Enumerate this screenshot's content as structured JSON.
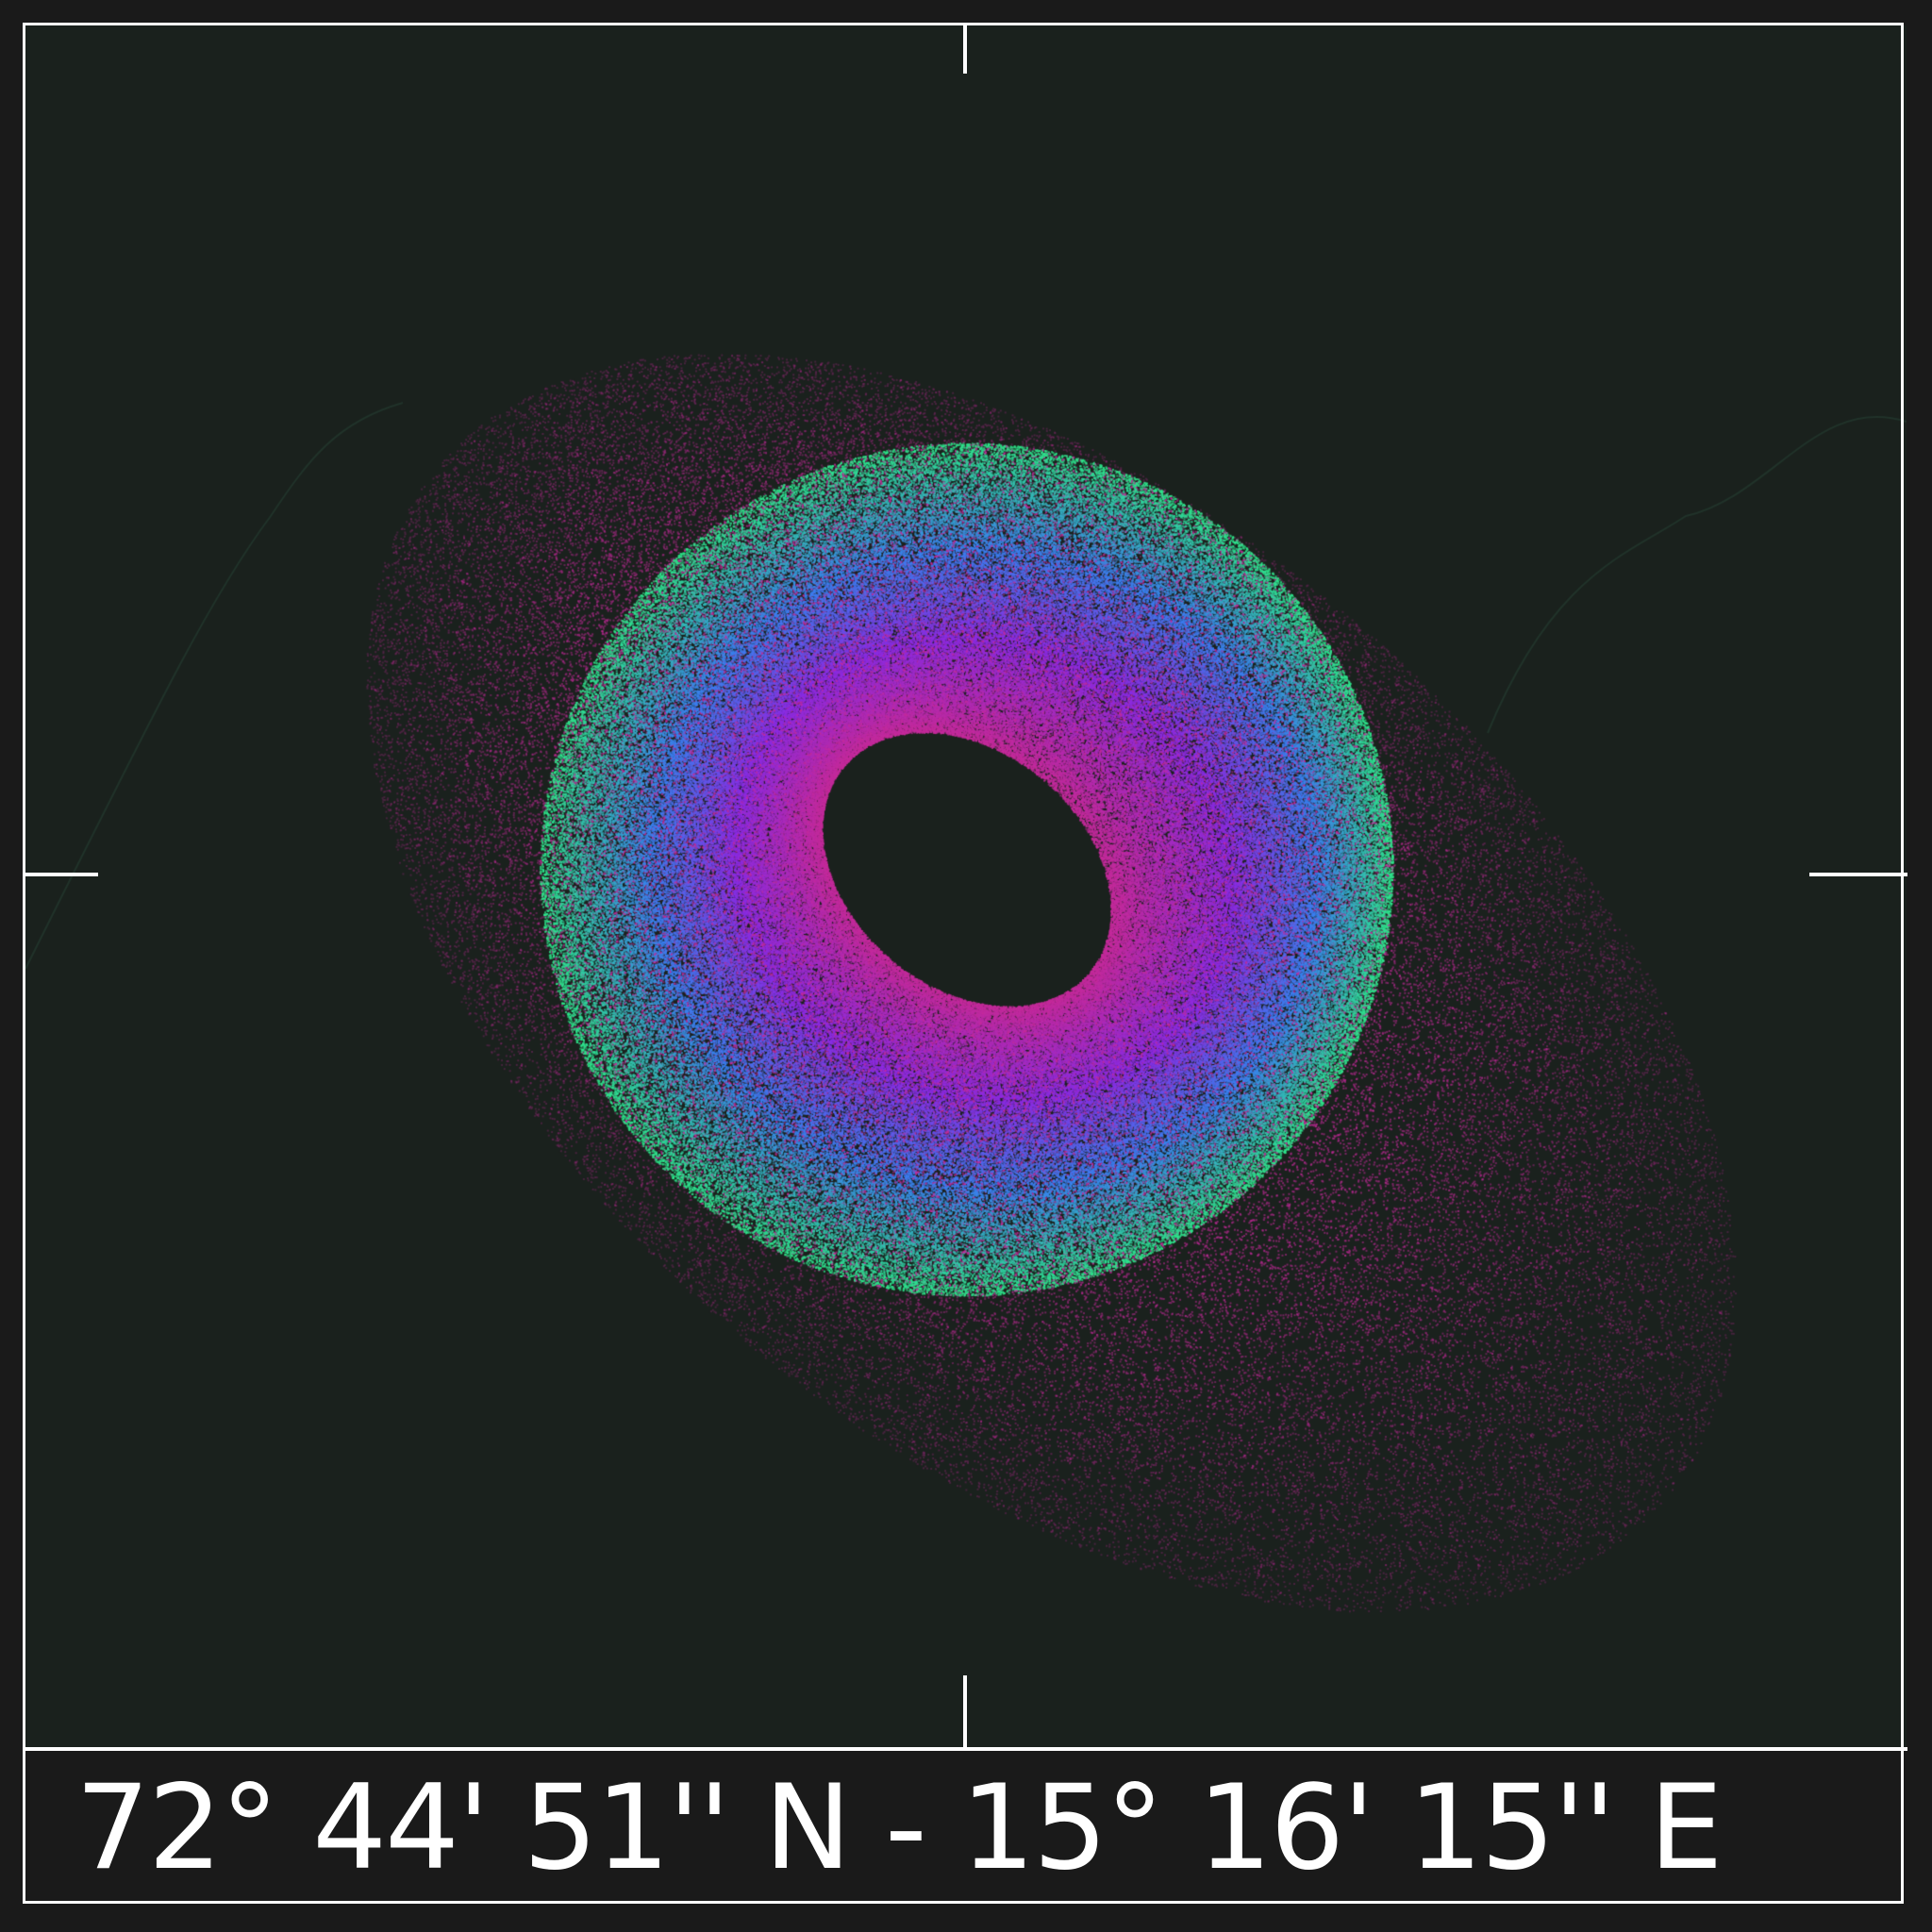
{
  "caption": "72° 44' 51'' N - 15° 16' 15'' E",
  "colors": {
    "background": "#1a1a1a",
    "canvas": "#1a211d",
    "frame": "#ffffff",
    "ring_outer": "#2ee88a",
    "ring_mid": "#3a7ff0",
    "ring_inner": "#8a2be2",
    "halo": "#c42a9a"
  },
  "icons": [
    "crosshair-tick-top",
    "crosshair-tick-bottom",
    "crosshair-tick-left",
    "crosshair-tick-right"
  ]
}
